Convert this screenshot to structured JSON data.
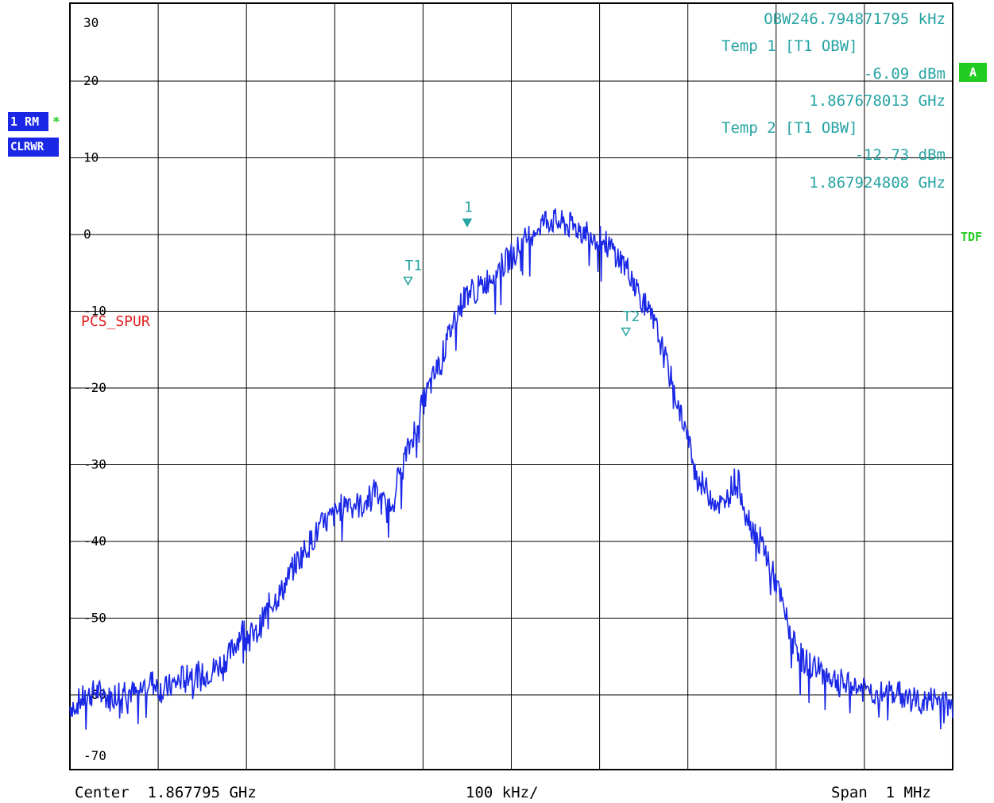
{
  "colors": {
    "trace": "#1a28e6",
    "marker": "#27a3a3",
    "limit_line_label": "#e02020",
    "badge_blue": "#1a28e6",
    "badge_green": "#22cc22",
    "grid": "#000000"
  },
  "trace_badges": {
    "trace_mode": "1 RM",
    "star": "*",
    "clear_write": "CLRWR"
  },
  "right_badges": {
    "screen": "A",
    "tdf": "TDF"
  },
  "limit_line_label": "PCS_SPUR",
  "marker_readout": {
    "obw": "OBW246.794871795 kHz",
    "temp1_label": "Temp 1 [T1 OBW]",
    "temp1_level": "-6.09 dBm",
    "temp1_freq": "1.867678013 GHz",
    "temp2_label": "Temp 2 [T1 OBW]",
    "temp2_level": "-12.73 dBm",
    "temp2_freq": "1.867924808 GHz"
  },
  "footer": {
    "center": "Center  1.867795 GHz",
    "div": "100 kHz/",
    "span": "Span  1 MHz"
  },
  "chart_data": {
    "type": "line",
    "title": "",
    "xlabel": "",
    "ylabel": "",
    "xlim_mhz": [
      1867.295,
      1868.295
    ],
    "ylim": [
      -75,
      25
    ],
    "y_ticks": [
      30,
      20,
      10,
      0,
      -10,
      -20,
      -30,
      -40,
      -50,
      -60,
      -70
    ],
    "grid": true,
    "markers": [
      {
        "name": "1",
        "x_mhz": 1867.745,
        "y": 1.5
      },
      {
        "name": "T1",
        "x_mhz": 1867.678013,
        "y": -6.09
      },
      {
        "name": "T2",
        "x_mhz": 1867.924808,
        "y": -12.73
      }
    ],
    "series": [
      {
        "x_mhz": [
          1867.295,
          1867.31,
          1867.325,
          1867.34,
          1867.355,
          1867.37,
          1867.385,
          1867.4,
          1867.415,
          1867.43,
          1867.445,
          1867.46,
          1867.475,
          1867.49,
          1867.505,
          1867.52,
          1867.535,
          1867.55,
          1867.565,
          1867.58,
          1867.595,
          1867.61,
          1867.625,
          1867.64,
          1867.655,
          1867.67,
          1867.68,
          1867.69,
          1867.7,
          1867.715,
          1867.73,
          1867.745,
          1867.76,
          1867.775,
          1867.79,
          1867.805,
          1867.82,
          1867.835,
          1867.85,
          1867.865,
          1867.88,
          1867.895,
          1867.91,
          1867.92,
          1867.93,
          1867.945,
          1867.96,
          1867.975,
          1867.99,
          1868.005,
          1868.02,
          1868.035,
          1868.05,
          1868.065,
          1868.08,
          1868.095,
          1868.11,
          1868.125,
          1868.14,
          1868.155,
          1868.17,
          1868.185,
          1868.2,
          1868.215,
          1868.23,
          1868.245,
          1868.26,
          1868.275,
          1868.295
        ],
        "y": [
          -61.5,
          -60.5,
          -59.5,
          -60.5,
          -59.0,
          -60.0,
          -58.0,
          -59.5,
          -58.5,
          -57.0,
          -57.5,
          -56.5,
          -55.0,
          -51.5,
          -52.5,
          -48.5,
          -46.5,
          -43.0,
          -40.5,
          -38.0,
          -36.5,
          -34.5,
          -35.5,
          -33.5,
          -36.0,
          -30.5,
          -27.5,
          -23.5,
          -20.5,
          -16.5,
          -11.0,
          -7.5,
          -7.0,
          -5.0,
          -3.5,
          -1.5,
          0.5,
          2.0,
          1.5,
          1.0,
          0.5,
          -0.5,
          -2.0,
          -3.5,
          -5.0,
          -9.0,
          -12.5,
          -18.5,
          -24.5,
          -31.5,
          -34.0,
          -35.5,
          -31.5,
          -37.5,
          -40.5,
          -45.5,
          -51.5,
          -55.5,
          -56.5,
          -57.5,
          -58.5,
          -59.0,
          -59.5,
          -60.0,
          -59.5,
          -60.5,
          -61.0,
          -60.5,
          -61.5
        ]
      }
    ]
  }
}
